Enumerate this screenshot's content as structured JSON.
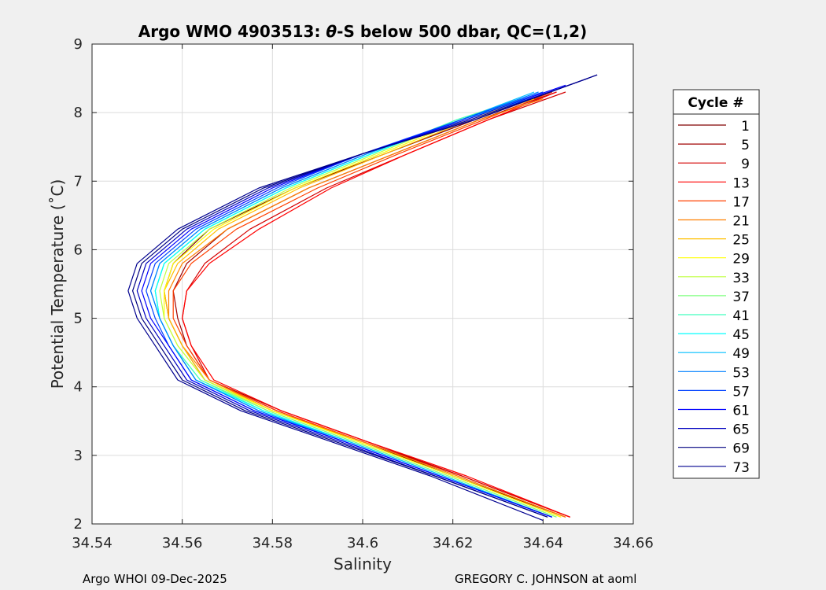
{
  "chart_data": {
    "type": "line",
    "title": "Argo WMO 4903513: θ-S below 500 dbar,  QC=(1,2)",
    "title_parts": {
      "prefix": "Argo WMO 4903513: ",
      "theta": "θ",
      "suffix": "-S below 500 dbar,  QC=(1,2)"
    },
    "xlabel": "Salinity",
    "ylabel": "Potential Temperature (˚C)",
    "xlim": [
      34.54,
      34.66
    ],
    "ylim": [
      2,
      9
    ],
    "xticks": [
      34.54,
      34.56,
      34.58,
      34.6,
      34.62,
      34.64,
      34.66
    ],
    "xtick_labels": [
      "34.54",
      "34.56",
      "34.58",
      "34.6",
      "34.62",
      "34.64",
      "34.66"
    ],
    "yticks": [
      2,
      3,
      4,
      5,
      6,
      7,
      8,
      9
    ],
    "ytick_labels": [
      "2",
      "3",
      "4",
      "5",
      "6",
      "7",
      "8",
      "9"
    ],
    "grid": true,
    "legend_title": "Cycle #",
    "legend_position": "right",
    "series": [
      {
        "name": "1",
        "color": "#800000",
        "salinity": [
          34.645,
          34.62,
          34.6,
          34.58,
          34.565,
          34.56,
          34.557,
          34.556,
          34.558,
          34.566,
          34.585,
          34.605,
          34.625,
          34.642
        ],
        "theta": [
          2.1,
          2.7,
          3.2,
          3.65,
          4.1,
          4.6,
          5.0,
          5.4,
          5.8,
          6.3,
          6.9,
          7.4,
          7.9,
          8.3
        ]
      },
      {
        "name": "5",
        "color": "#a00000",
        "salinity": [
          34.646,
          34.622,
          34.601,
          34.582,
          34.566,
          34.561,
          34.559,
          34.558,
          34.561,
          34.57,
          34.588,
          34.607,
          34.626,
          34.643
        ],
        "theta": [
          2.1,
          2.7,
          3.2,
          3.65,
          4.1,
          4.6,
          5.0,
          5.4,
          5.8,
          6.3,
          6.9,
          7.4,
          7.9,
          8.3
        ]
      },
      {
        "name": "9",
        "color": "#d40000",
        "salinity": [
          34.646,
          34.622,
          34.6,
          34.581,
          34.566,
          34.562,
          34.56,
          34.561,
          34.565,
          34.575,
          34.592,
          34.61,
          34.628,
          34.645
        ],
        "theta": [
          2.1,
          2.7,
          3.2,
          3.65,
          4.1,
          4.6,
          5.0,
          5.4,
          5.8,
          6.3,
          6.9,
          7.4,
          7.9,
          8.3
        ]
      },
      {
        "name": "13",
        "color": "#ff0000",
        "salinity": [
          34.646,
          34.623,
          34.601,
          34.582,
          34.567,
          34.562,
          34.56,
          34.561,
          34.566,
          34.577,
          34.593,
          34.61,
          34.628,
          34.643
        ],
        "theta": [
          2.1,
          2.7,
          3.2,
          3.65,
          4.1,
          4.6,
          5.0,
          5.4,
          5.8,
          6.3,
          6.9,
          7.4,
          7.9,
          8.3
        ]
      },
      {
        "name": "17",
        "color": "#ff4000",
        "salinity": [
          34.645,
          34.621,
          34.6,
          34.581,
          34.566,
          34.561,
          34.558,
          34.558,
          34.562,
          34.572,
          34.59,
          34.608,
          34.627,
          34.642
        ],
        "theta": [
          2.1,
          2.7,
          3.2,
          3.65,
          4.1,
          4.6,
          5.0,
          5.4,
          5.8,
          6.3,
          6.9,
          7.4,
          7.9,
          8.3
        ]
      },
      {
        "name": "21",
        "color": "#ff8000",
        "salinity": [
          34.645,
          34.621,
          34.6,
          34.58,
          34.566,
          34.56,
          34.557,
          34.557,
          34.56,
          34.57,
          34.588,
          34.607,
          34.626,
          34.64
        ],
        "theta": [
          2.1,
          2.7,
          3.2,
          3.65,
          4.1,
          4.6,
          5.0,
          5.4,
          5.8,
          6.3,
          6.9,
          7.4,
          7.9,
          8.2
        ]
      },
      {
        "name": "25",
        "color": "#ffbf00",
        "salinity": [
          34.644,
          34.62,
          34.599,
          34.58,
          34.565,
          34.56,
          34.557,
          34.556,
          34.559,
          34.568,
          34.586,
          34.605,
          34.624,
          34.638
        ],
        "theta": [
          2.1,
          2.7,
          3.2,
          3.65,
          4.1,
          4.6,
          5.0,
          5.4,
          5.8,
          6.3,
          6.9,
          7.4,
          7.9,
          8.2
        ]
      },
      {
        "name": "29",
        "color": "#ffff00",
        "salinity": [
          34.644,
          34.62,
          34.599,
          34.58,
          34.565,
          34.559,
          34.556,
          34.556,
          34.558,
          34.567,
          34.585,
          34.604,
          34.623,
          34.637
        ],
        "theta": [
          2.1,
          2.7,
          3.2,
          3.65,
          4.1,
          4.6,
          5.0,
          5.4,
          5.8,
          6.3,
          6.9,
          7.4,
          7.9,
          8.2
        ]
      },
      {
        "name": "33",
        "color": "#bfff40",
        "salinity": [
          34.643,
          34.619,
          34.598,
          34.579,
          34.565,
          34.559,
          34.556,
          34.555,
          34.557,
          34.566,
          34.584,
          34.603,
          34.622,
          34.636
        ],
        "theta": [
          2.1,
          2.7,
          3.2,
          3.65,
          4.1,
          4.6,
          5.0,
          5.4,
          5.8,
          6.3,
          6.9,
          7.4,
          7.9,
          8.2
        ]
      },
      {
        "name": "37",
        "color": "#80ff80",
        "salinity": [
          34.643,
          34.619,
          34.598,
          34.579,
          34.564,
          34.558,
          34.555,
          34.554,
          34.556,
          34.565,
          34.583,
          34.602,
          34.621,
          34.635
        ],
        "theta": [
          2.1,
          2.7,
          3.2,
          3.65,
          4.1,
          4.6,
          5.0,
          5.4,
          5.8,
          6.3,
          6.9,
          7.4,
          7.9,
          8.2
        ]
      },
      {
        "name": "41",
        "color": "#40ffbf",
        "salinity": [
          34.642,
          34.618,
          34.597,
          34.578,
          34.564,
          34.558,
          34.555,
          34.554,
          34.556,
          34.565,
          34.583,
          34.602,
          34.621,
          34.636
        ],
        "theta": [
          2.1,
          2.7,
          3.2,
          3.65,
          4.1,
          4.6,
          5.0,
          5.4,
          5.8,
          6.3,
          6.9,
          7.4,
          7.9,
          8.2
        ]
      },
      {
        "name": "45",
        "color": "#00ffff",
        "salinity": [
          34.642,
          34.618,
          34.597,
          34.578,
          34.563,
          34.558,
          34.555,
          34.554,
          34.556,
          34.565,
          34.583,
          34.602,
          34.622,
          34.637
        ],
        "theta": [
          2.1,
          2.7,
          3.2,
          3.65,
          4.1,
          4.6,
          5.0,
          5.4,
          5.8,
          6.3,
          6.9,
          7.4,
          7.9,
          8.2
        ]
      },
      {
        "name": "49",
        "color": "#00bfff",
        "salinity": [
          34.642,
          34.618,
          34.597,
          34.577,
          34.563,
          34.558,
          34.555,
          34.553,
          34.555,
          34.564,
          34.582,
          34.601,
          34.622,
          34.638
        ],
        "theta": [
          2.1,
          2.7,
          3.2,
          3.65,
          4.1,
          4.6,
          5.0,
          5.4,
          5.8,
          6.3,
          6.9,
          7.4,
          7.9,
          8.3
        ]
      },
      {
        "name": "53",
        "color": "#0080ff",
        "salinity": [
          34.642,
          34.617,
          34.596,
          34.577,
          34.563,
          34.558,
          34.555,
          34.553,
          34.555,
          34.564,
          34.582,
          34.601,
          34.622,
          34.639
        ],
        "theta": [
          2.1,
          2.7,
          3.2,
          3.65,
          4.1,
          4.6,
          5.0,
          5.4,
          5.8,
          6.3,
          6.9,
          7.4,
          7.9,
          8.3
        ]
      },
      {
        "name": "57",
        "color": "#0040ff",
        "salinity": [
          34.642,
          34.617,
          34.596,
          34.576,
          34.562,
          34.557,
          34.554,
          34.552,
          34.554,
          34.563,
          34.581,
          34.6,
          34.622,
          34.64
        ],
        "theta": [
          2.1,
          2.7,
          3.2,
          3.65,
          4.1,
          4.6,
          5.0,
          5.4,
          5.8,
          6.3,
          6.9,
          7.4,
          7.9,
          8.3
        ]
      },
      {
        "name": "61",
        "color": "#0000ff",
        "salinity": [
          34.642,
          34.617,
          34.596,
          34.576,
          34.562,
          34.557,
          34.553,
          34.551,
          34.553,
          34.562,
          34.58,
          34.6,
          34.623,
          34.645
        ],
        "theta": [
          2.1,
          2.7,
          3.2,
          3.65,
          4.1,
          4.6,
          5.0,
          5.4,
          5.8,
          6.3,
          6.9,
          7.4,
          7.9,
          8.4
        ]
      },
      {
        "name": "65",
        "color": "#0000bf",
        "salinity": [
          34.641,
          34.616,
          34.595,
          34.575,
          34.561,
          34.556,
          34.552,
          34.55,
          34.552,
          34.561,
          34.579,
          34.6,
          34.624,
          34.65
        ],
        "theta": [
          2.1,
          2.7,
          3.2,
          3.65,
          4.1,
          4.6,
          5.0,
          5.4,
          5.8,
          6.3,
          6.9,
          7.4,
          7.9,
          8.5
        ]
      },
      {
        "name": "69",
        "color": "#000080",
        "salinity": [
          34.641,
          34.616,
          34.594,
          34.574,
          34.56,
          34.555,
          34.551,
          34.549,
          34.551,
          34.56,
          34.578,
          34.6,
          34.625,
          34.652
        ],
        "theta": [
          2.1,
          2.7,
          3.2,
          3.65,
          4.1,
          4.6,
          5.0,
          5.4,
          5.8,
          6.3,
          6.9,
          7.4,
          7.9,
          8.55
        ]
      },
      {
        "name": "73",
        "color": "#00008f",
        "salinity": [
          34.64,
          34.615,
          34.593,
          34.573,
          34.559,
          34.554,
          34.55,
          34.548,
          34.55,
          34.559,
          34.577,
          34.6,
          34.625,
          34.652
        ],
        "theta": [
          2.05,
          2.7,
          3.2,
          3.65,
          4.1,
          4.6,
          5.0,
          5.4,
          5.8,
          6.3,
          6.9,
          7.4,
          7.9,
          8.55
        ]
      }
    ]
  },
  "footer": {
    "left": "Argo WHOI 09-Dec-2025",
    "right": "GREGORY C. JOHNSON at aoml"
  }
}
